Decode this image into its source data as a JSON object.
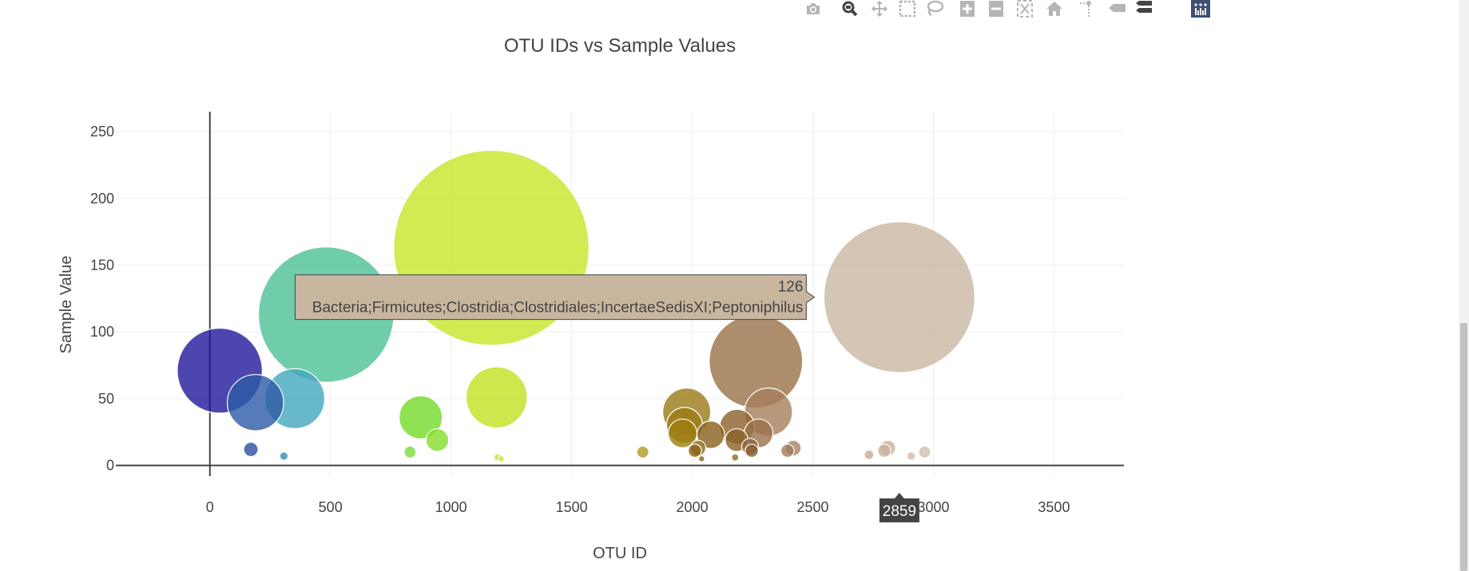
{
  "modebar": {
    "icons": [
      "camera-icon",
      "zoom-icon",
      "pan-icon",
      "box-select-icon",
      "lasso-icon",
      "zoom-in-icon",
      "zoom-out-icon",
      "autoscale-icon",
      "reset-axes-icon",
      "spike-lines-icon",
      "hover-closest-icon",
      "hover-compare-icon",
      "plotly-logo-icon"
    ]
  },
  "chart_data": {
    "type": "scatter",
    "title": "OTU IDs vs Sample Values",
    "xlabel": "OTU ID",
    "ylabel": "Sample Value",
    "xlim": [
      -390,
      3790
    ],
    "ylim": [
      -8,
      265
    ],
    "xticks": [
      0,
      500,
      1000,
      1500,
      2000,
      2500,
      3000,
      3500
    ],
    "xtick_labels": [
      "0",
      "500",
      "1000",
      "1500",
      "2000",
      "2500",
      "3000",
      "3500"
    ],
    "yticks": [
      0,
      50,
      100,
      150,
      200,
      250
    ],
    "ytick_labels": [
      "0",
      "50",
      "100",
      "150",
      "200",
      "250"
    ],
    "grid": true,
    "legend": "none",
    "marker_size": "sample value",
    "marker_color": "OTU ID (Earth colorscale)",
    "series": [
      {
        "points": [
          {
            "x": 41,
            "y": 71,
            "color": "#21189a"
          },
          {
            "x": 170,
            "y": 12,
            "color": "#2a4ea0"
          },
          {
            "x": 189,
            "y": 47,
            "color": "#2c5aa6"
          },
          {
            "x": 307,
            "y": 7,
            "color": "#3a8cba"
          },
          {
            "x": 352,
            "y": 50,
            "color": "#42a7bd"
          },
          {
            "x": 482,
            "y": 113,
            "color": "#4cc094"
          },
          {
            "x": 830,
            "y": 10,
            "color": "#7fd83b"
          },
          {
            "x": 874,
            "y": 36,
            "color": "#72db28"
          },
          {
            "x": 943,
            "y": 19,
            "color": "#86dc2c"
          },
          {
            "x": 1167,
            "y": 163,
            "color": "#c5e628"
          },
          {
            "x": 1189,
            "y": 51,
            "color": "#c1e220"
          },
          {
            "x": 1193,
            "y": 6,
            "color": "#c4e330"
          },
          {
            "x": 1208,
            "y": 5,
            "color": "#c4e330"
          },
          {
            "x": 1795,
            "y": 10,
            "color": "#b09a20"
          },
          {
            "x": 1977,
            "y": 40,
            "color": "#9a7a18"
          },
          {
            "x": 1968,
            "y": 30,
            "color": "#9b7b14"
          },
          {
            "x": 1960,
            "y": 24,
            "color": "#9e7d0e"
          },
          {
            "x": 2011,
            "y": 11,
            "color": "#8b6416"
          },
          {
            "x": 2024,
            "y": 13,
            "color": "#8e6a20"
          },
          {
            "x": 2039,
            "y": 5,
            "color": "#8a6418"
          },
          {
            "x": 2077,
            "y": 23,
            "color": "#8a5f1c"
          },
          {
            "x": 2178,
            "y": 6,
            "color": "#8f6a30"
          },
          {
            "x": 2186,
            "y": 29,
            "color": "#8b6028"
          },
          {
            "x": 2184,
            "y": 19,
            "color": "#8b6028"
          },
          {
            "x": 2240,
            "y": 14,
            "color": "#8e6438"
          },
          {
            "x": 2247,
            "y": 11,
            "color": "#886030"
          },
          {
            "x": 2264,
            "y": 78,
            "color": "#9a7048"
          },
          {
            "x": 2275,
            "y": 24,
            "color": "#9a7048"
          },
          {
            "x": 2316,
            "y": 40,
            "color": "#a57e5a"
          },
          {
            "x": 2395,
            "y": 11,
            "color": "#a47b5a"
          },
          {
            "x": 2419,
            "y": 13,
            "color": "#a88362"
          },
          {
            "x": 2733,
            "y": 8,
            "color": "#c4ac94"
          },
          {
            "x": 2796,
            "y": 11,
            "color": "#c9b39d"
          },
          {
            "x": 2811,
            "y": 13,
            "color": "#c9b39d"
          },
          {
            "x": 2859,
            "y": 126,
            "color": "#cab7a2"
          },
          {
            "x": 2908,
            "y": 7,
            "color": "#cdbca8"
          },
          {
            "x": 2964,
            "y": 10,
            "color": "#cfbfab"
          }
        ]
      }
    ],
    "hover": {
      "x_label": "2859",
      "value": "126",
      "text": "Bacteria;Firmicutes;Clostridia;Clostridiales;IncertaeSedisXI;Peptoniphilus",
      "color": "#c8b69f"
    },
    "colors": {
      "grid": "#eeeeee",
      "axis": "#444444",
      "zero_line": "#444444",
      "text": "#444444",
      "modebar_icon": "#b5b5b5",
      "modebar_active": "#444444",
      "plotly_logo_bg": "#3f4f75"
    }
  }
}
